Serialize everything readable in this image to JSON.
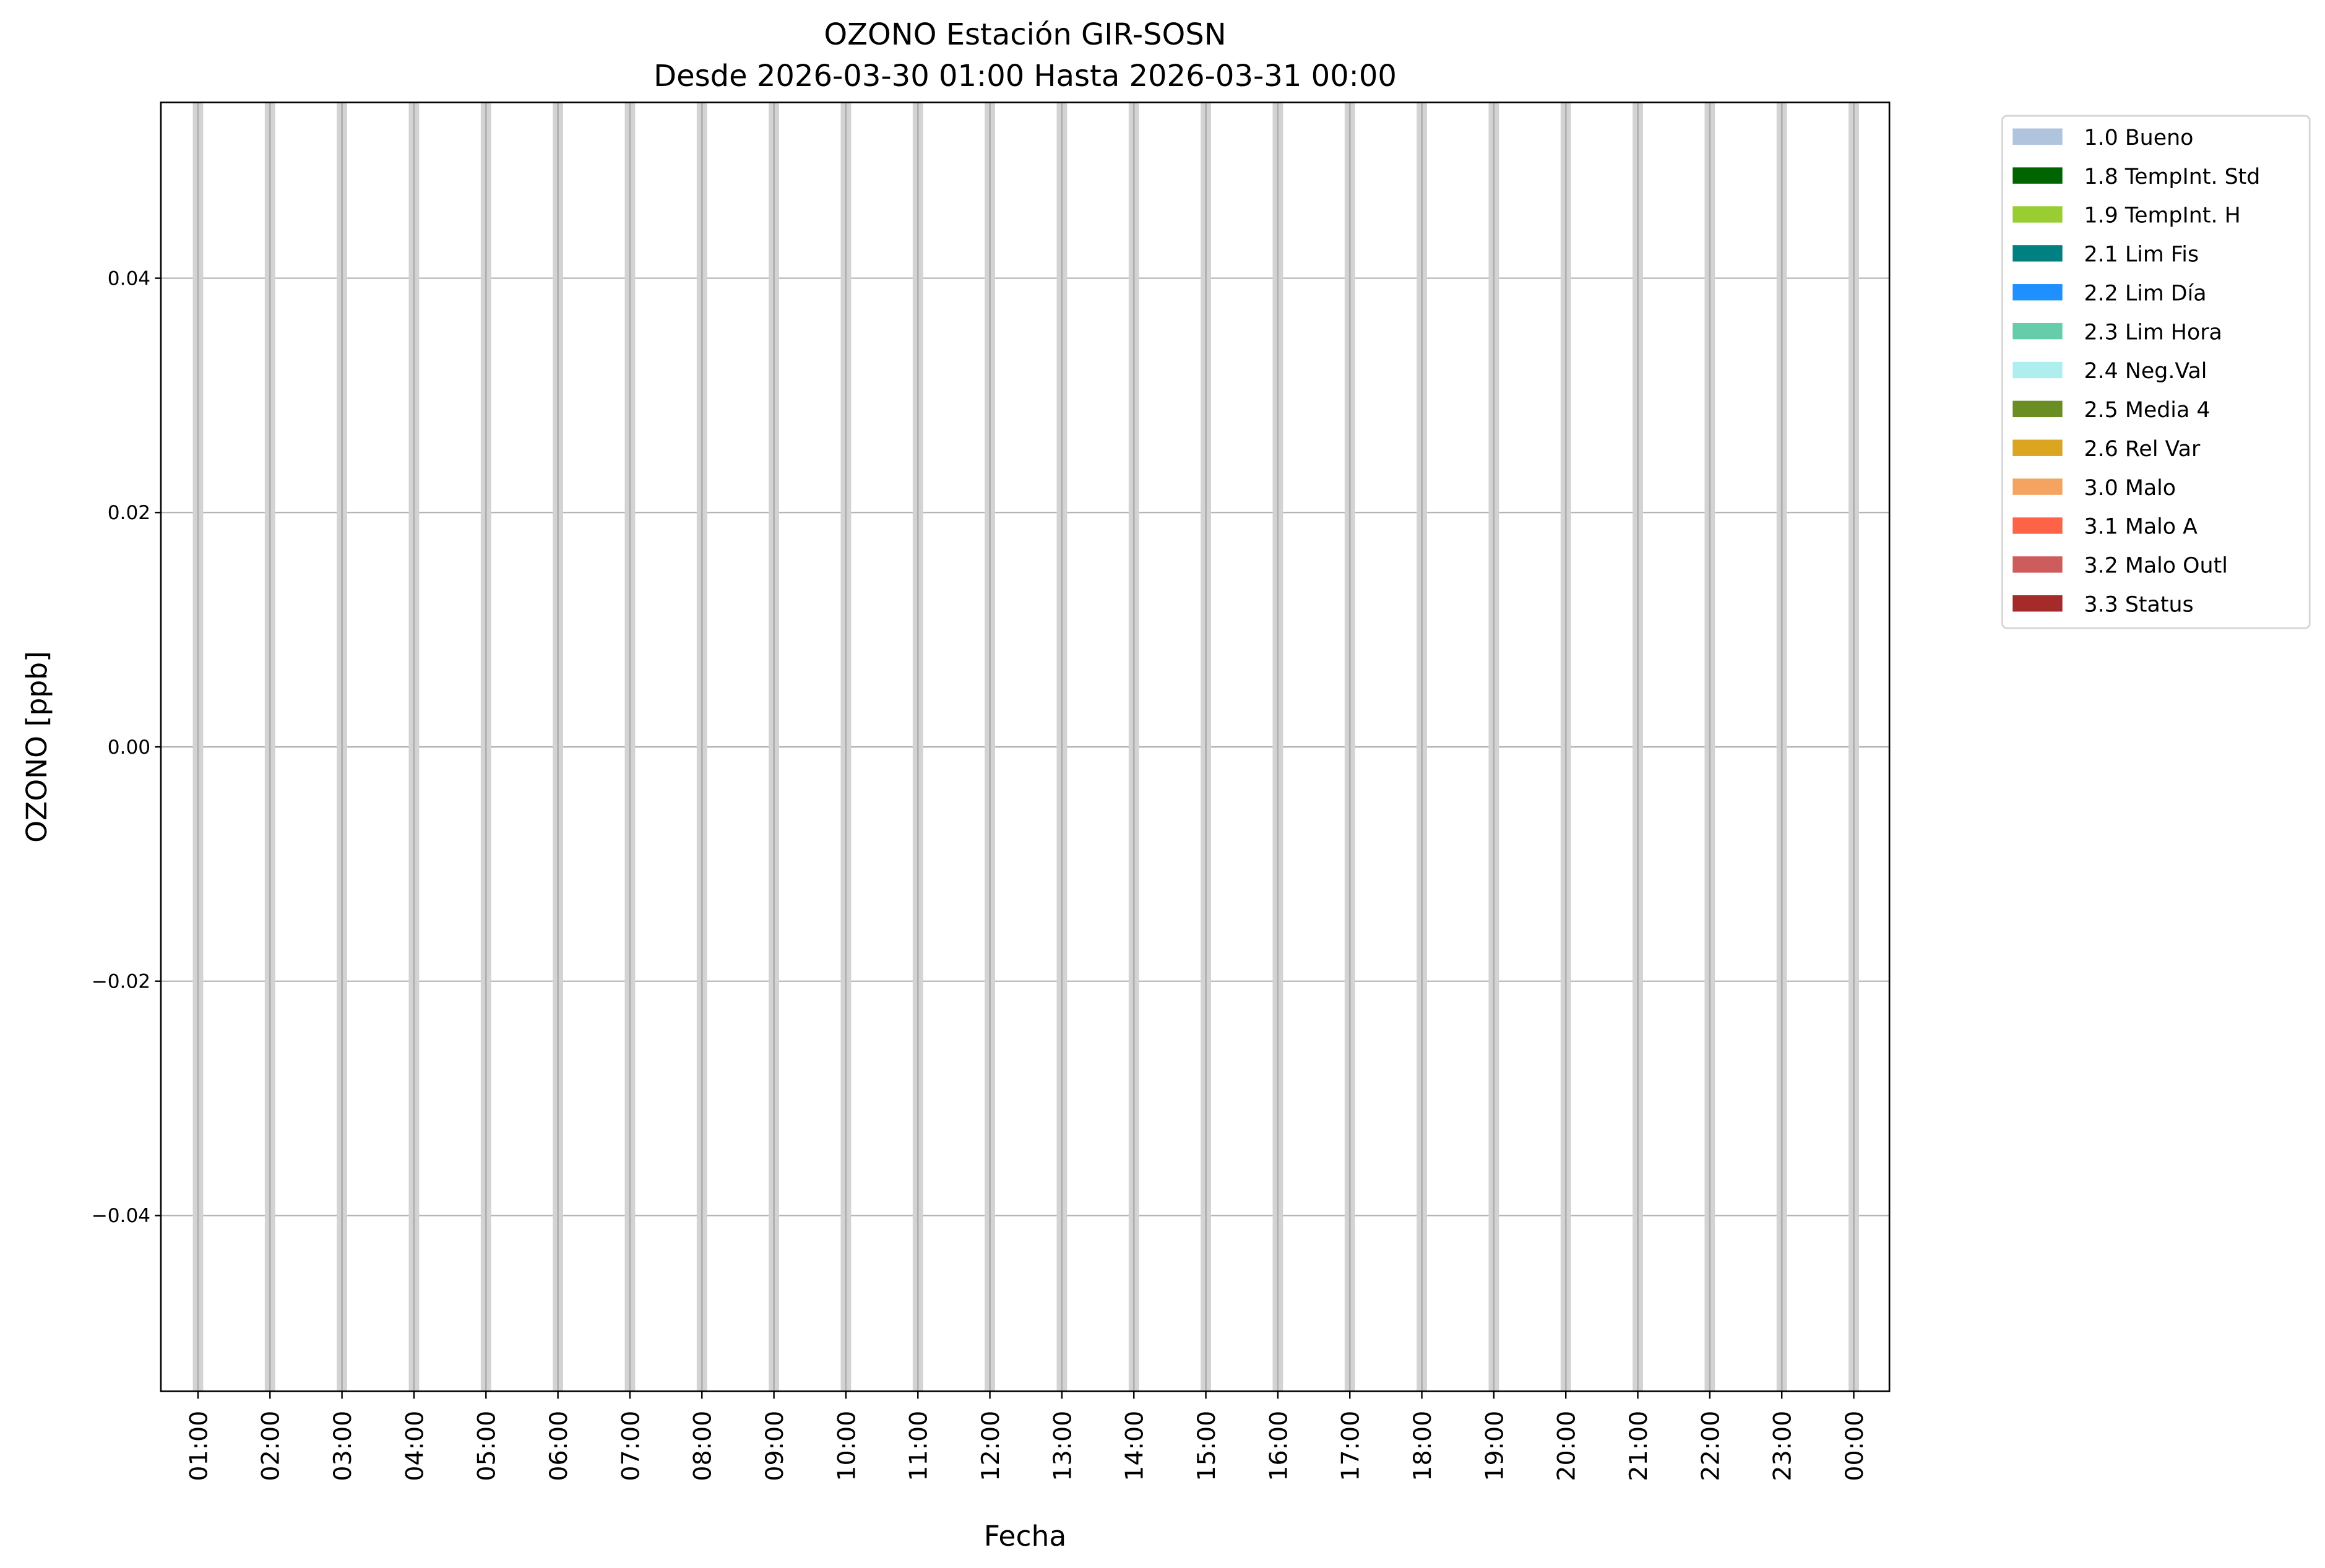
{
  "chart_data": {
    "type": "bar",
    "title": "OZONO Estación GIR-SOSN",
    "subtitle": "Desde 2026-03-30 01:00 Hasta 2026-03-31 00:00",
    "xlabel": "Fecha",
    "ylabel": "OZONO [ppb]",
    "x_ticks": [
      "01:00",
      "02:00",
      "03:00",
      "04:00",
      "05:00",
      "06:00",
      "07:00",
      "08:00",
      "09:00",
      "10:00",
      "11:00",
      "12:00",
      "13:00",
      "14:00",
      "15:00",
      "16:00",
      "17:00",
      "18:00",
      "19:00",
      "20:00",
      "21:00",
      "22:00",
      "23:00",
      "00:00"
    ],
    "y_ticks": [
      -0.04,
      -0.02,
      0.0,
      0.02,
      0.04
    ],
    "y_tick_labels": [
      "−0.04",
      "−0.02",
      "0.00",
      "0.02",
      "0.04"
    ],
    "ylim": [
      -0.055,
      0.055
    ],
    "grid": true,
    "hour_markers_color": "#d3d3d3",
    "series": [],
    "legend": {
      "placement": "outside-top-right",
      "entries": [
        {
          "label": "1.0 Bueno",
          "color": "#b0c4de"
        },
        {
          "label": "1.8 TempInt. Std",
          "color": "#006400"
        },
        {
          "label": "1.9 TempInt. H",
          "color": "#9acd32"
        },
        {
          "label": "2.1 Lim Fis",
          "color": "#008080"
        },
        {
          "label": "2.2 Lim Día",
          "color": "#1e90ff"
        },
        {
          "label": "2.3 Lim Hora",
          "color": "#66cdaa"
        },
        {
          "label": "2.4 Neg.Val",
          "color": "#afeeee"
        },
        {
          "label": "2.5 Media 4",
          "color": "#6b8e23"
        },
        {
          "label": "2.6 Rel Var",
          "color": "#daa520"
        },
        {
          "label": "3.0 Malo",
          "color": "#f4a460"
        },
        {
          "label": "3.1 Malo A",
          "color": "#ff6347"
        },
        {
          "label": "3.2 Malo Outl",
          "color": "#cd5c5c"
        },
        {
          "label": "3.3 Status",
          "color": "#a52a2a"
        }
      ]
    }
  }
}
